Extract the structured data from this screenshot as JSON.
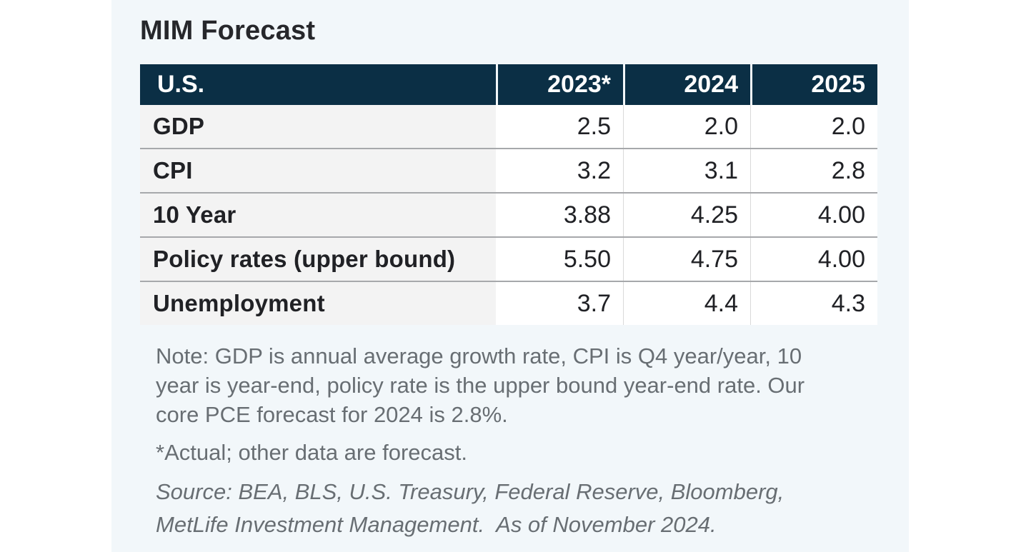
{
  "title": "MIM Forecast",
  "table": {
    "header": {
      "label": "U.S.",
      "years": [
        "2023*",
        "2024",
        "2025"
      ]
    },
    "rows": [
      {
        "label": "GDP",
        "values": [
          "2.5",
          "2.0",
          "2.0"
        ]
      },
      {
        "label": "CPI",
        "values": [
          "3.2",
          "3.1",
          "2.8"
        ]
      },
      {
        "label": "10 Year",
        "values": [
          "3.88",
          "4.25",
          "4.00"
        ]
      },
      {
        "label": "Policy rates (upper bound)",
        "values": [
          "5.50",
          "4.75",
          "4.00"
        ]
      },
      {
        "label": "Unemployment",
        "values": [
          "3.7",
          "4.4",
          "4.3"
        ]
      }
    ]
  },
  "notes": {
    "note_lines": [
      "Note: GDP is annual average growth rate, CPI is Q4 year/year, 10",
      "year is year-end, policy rate is the upper bound year-end rate. Our",
      "core PCE forecast for 2024 is 2.8%."
    ],
    "footnote": "*Actual; other data are forecast.",
    "source_lines": [
      "Source: BEA, BLS, U.S. Treasury, Federal Reserve, Bloomberg,",
      "MetLife Investment Management.  As of November 2024."
    ]
  },
  "colors": {
    "header_bg": "#0b2f45",
    "header_text": "#ffffff",
    "panel_bg": "#f2f7fa",
    "label_cell_bg": "#f3f3f3",
    "value_cell_bg": "#ffffff",
    "row_separator": "#a6a8ab",
    "column_line": "#d9d9d9",
    "body_text": "#202125",
    "note_text": "#686e73"
  },
  "chart_data": {
    "type": "table",
    "title": "MIM Forecast",
    "columns": [
      "U.S.",
      "2023*",
      "2024",
      "2025"
    ],
    "rows": [
      [
        "GDP",
        2.5,
        2.0,
        2.0
      ],
      [
        "CPI",
        3.2,
        3.1,
        2.8
      ],
      [
        "10 Year",
        3.88,
        4.25,
        4.0
      ],
      [
        "Policy rates (upper bound)",
        5.5,
        4.75,
        4.0
      ],
      [
        "Unemployment",
        3.7,
        4.4,
        4.3
      ]
    ],
    "notes": "Note: GDP is annual average growth rate, CPI is Q4 year/year, 10 year is year-end, policy rate is the upper bound year-end rate. Our core PCE forecast for 2024 is 2.8%. *Actual; other data are forecast.",
    "source": "Source: BEA, BLS, U.S. Treasury, Federal Reserve, Bloomberg, MetLife Investment Management.  As of November 2024."
  }
}
